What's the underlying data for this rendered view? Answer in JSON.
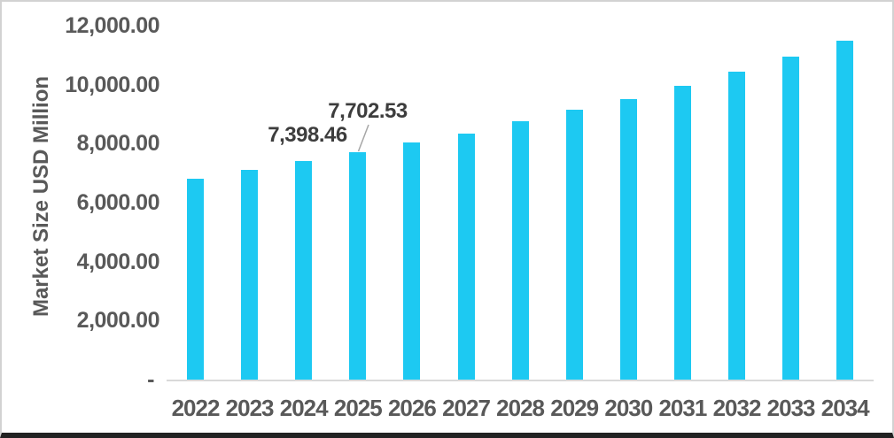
{
  "chart_data": {
    "type": "bar",
    "title": "",
    "xlabel": "",
    "ylabel": "Market Size USD Million",
    "ylim": [
      0,
      12000
    ],
    "grid": false,
    "legend": false,
    "bar_color": "#1DC9F2",
    "axis_line_color": "#D9D9D9",
    "axis_label_color": "#595959",
    "annotation_color": "#3D3D3D",
    "leader_line_color": "#A6A6A6",
    "categories": [
      "2022",
      "2023",
      "2024",
      "2025",
      "2026",
      "2027",
      "2028",
      "2029",
      "2030",
      "2031",
      "2032",
      "2033",
      "2034"
    ],
    "values": [
      6820,
      7100,
      7398.46,
      7702.53,
      8030,
      8340,
      8755,
      9140,
      9520,
      9970,
      10440,
      10940,
      11490
    ],
    "y_ticks": [
      {
        "label": "12,000.00",
        "value": 12000
      },
      {
        "label": "10,000.00",
        "value": 10000
      },
      {
        "label": "8,000.00",
        "value": 8000
      },
      {
        "label": "6,000.00",
        "value": 6000
      },
      {
        "label": "4,000.00",
        "value": 4000
      },
      {
        "label": "2,000.00",
        "value": 2000
      },
      {
        "label": "-",
        "value": 0
      }
    ],
    "annotations": [
      {
        "text": "7,398.46",
        "target_year": "2024"
      },
      {
        "text": "7,702.53",
        "target_year": "2025",
        "leader_line": true
      }
    ]
  }
}
